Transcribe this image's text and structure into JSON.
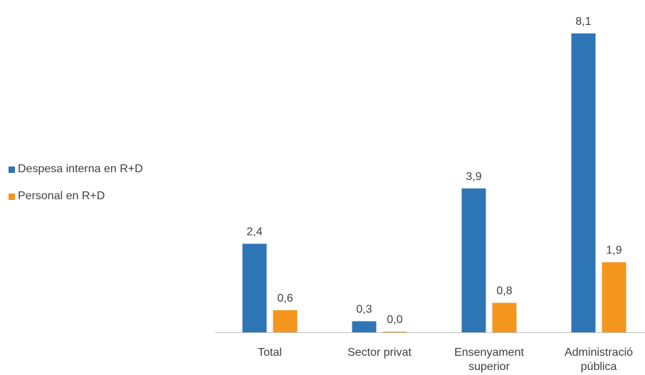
{
  "chart_data": {
    "type": "bar",
    "categories": [
      [
        "Total"
      ],
      [
        "Sector privat"
      ],
      [
        "Ensenyament",
        "superior"
      ],
      [
        "Administració",
        "pública"
      ]
    ],
    "series": [
      {
        "name": "Despesa interna en R+D",
        "values": [
          2.4,
          0.3,
          3.9,
          8.1
        ],
        "labels": [
          "2,4",
          "0,3",
          "3,9",
          "8,1"
        ],
        "color": "#2E75B6"
      },
      {
        "name": "Personal en R+D",
        "values": [
          0.6,
          0.0,
          0.8,
          1.9
        ],
        "labels": [
          "0,6",
          "0,0",
          "0,8",
          "1,9"
        ],
        "color": "#F4961E"
      }
    ],
    "ylim": [
      0,
      8.1
    ],
    "grid": false,
    "legend_position": "left"
  }
}
